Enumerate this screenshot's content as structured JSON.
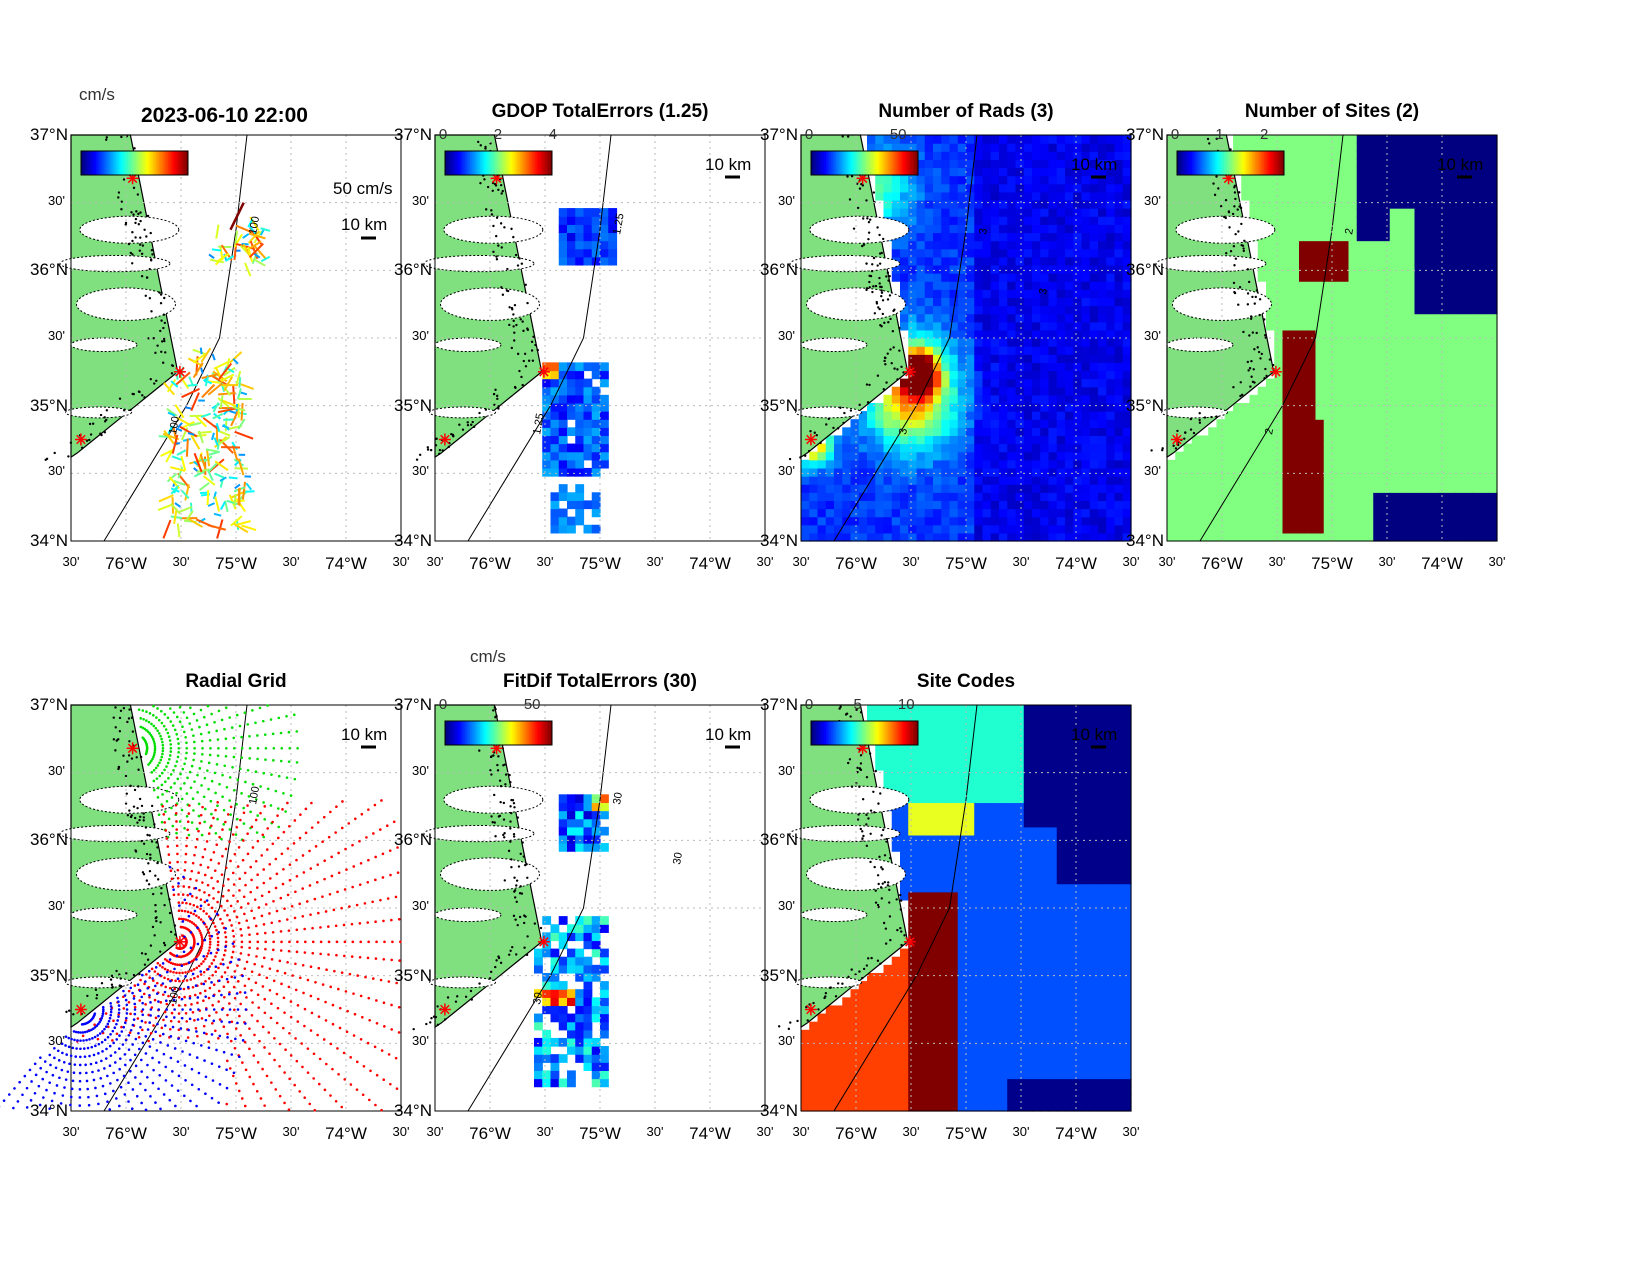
{
  "figure_title": "2023-06-10 22:00",
  "axes": {
    "lat_ticks": [
      "34°N",
      "30'",
      "35°N",
      "30'",
      "36°N",
      "30'",
      "37°N"
    ],
    "lon_ticks": [
      "30'",
      "76°W",
      "30'",
      "75°W",
      "30'",
      "74°W",
      "30'"
    ],
    "lon_range": [
      -76.5,
      -73.5
    ],
    "lat_range": [
      34,
      37
    ]
  },
  "sites": [
    {
      "lon": -75.94,
      "lat": 36.68
    },
    {
      "lon": -75.51,
      "lat": 35.25
    },
    {
      "lon": -76.41,
      "lat": 34.75
    }
  ],
  "colors": {
    "land": "#80e080",
    "site": "#ff0000",
    "grid": "#bbbbbb"
  },
  "panels": [
    {
      "id": "totals",
      "title": "",
      "colormap": "jet",
      "colorbar_unit": "cm/s",
      "colorbar_ticks": [],
      "scale_labels": [
        "50 cm/s",
        "10 km"
      ],
      "contour_labels": [
        "100",
        "100"
      ]
    },
    {
      "id": "gdop",
      "title": "GDOP TotalErrors (1.25)",
      "colormap": "jet",
      "colorbar_ticks": [
        "0",
        "2",
        "4"
      ],
      "scale_labels": [
        "10 km"
      ],
      "contour_labels": [
        "1.25",
        "1.25"
      ]
    },
    {
      "id": "nrads",
      "title": "Number of Rads (3)",
      "colormap": "jet",
      "colorbar_ticks": [
        "0",
        "50"
      ],
      "scale_labels": [
        "10 km"
      ],
      "contour_labels": [
        "3",
        "3",
        "3"
      ]
    },
    {
      "id": "nsites",
      "title": "Number of Sites (2)",
      "colormap": "jet",
      "colorbar_ticks": [
        "0",
        "1",
        "2"
      ],
      "scale_labels": [
        "10 km"
      ],
      "contour_labels": [
        "2",
        "2"
      ]
    },
    {
      "id": "radgrid",
      "title": "Radial Grid",
      "scale_labels": [
        "10 km"
      ],
      "contour_labels": [
        "100",
        "100"
      ],
      "site_colors": [
        "#00dd00",
        "#ff0000",
        "#0000ff"
      ]
    },
    {
      "id": "fitdif",
      "title": "FitDif TotalErrors (30)",
      "colormap": "jet",
      "colorbar_unit": "cm/s",
      "colorbar_ticks": [
        "0",
        "50"
      ],
      "scale_labels": [
        "10 km"
      ],
      "contour_labels": [
        "30",
        "30",
        "30"
      ]
    },
    {
      "id": "sitecodes",
      "title": "Site Codes",
      "colormap": "jet",
      "colorbar_ticks": [
        "0",
        "5",
        "10"
      ],
      "scale_labels": [
        "10 km"
      ]
    }
  ]
}
